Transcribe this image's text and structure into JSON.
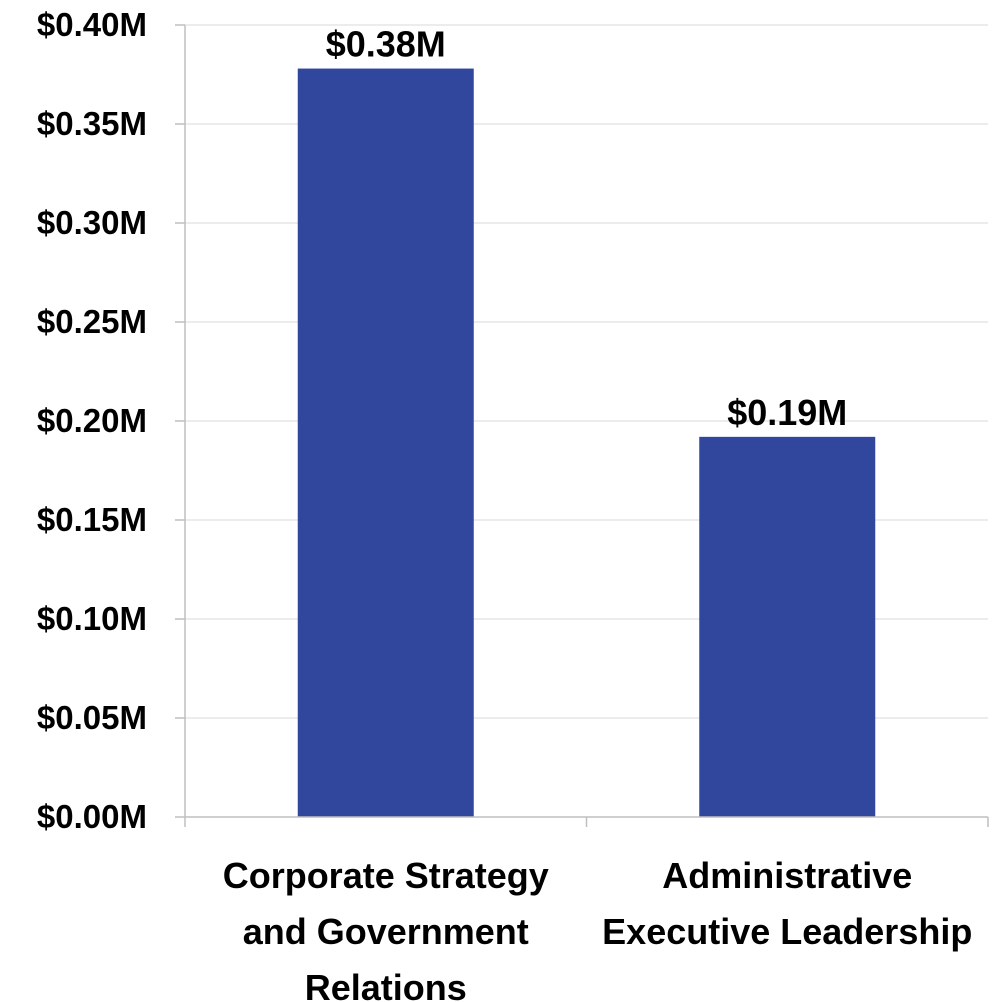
{
  "chart_data": {
    "type": "bar",
    "title": "",
    "xlabel": "",
    "ylabel": "",
    "categories": [
      [
        "Corporate Strategy",
        "and Government",
        "Relations"
      ],
      [
        "Administrative",
        "Executive Leadership"
      ]
    ],
    "values": [
      0.378,
      0.192
    ],
    "data_labels": [
      "$0.38M",
      "$0.19M"
    ],
    "ylim": [
      0,
      0.4
    ],
    "yticks": [
      0,
      0.05,
      0.1,
      0.15,
      0.2,
      0.25,
      0.3,
      0.35,
      0.4
    ],
    "ytick_labels": [
      "$0.00M",
      "$0.05M",
      "$0.10M",
      "$0.15M",
      "$0.20M",
      "$0.25M",
      "$0.30M",
      "$0.35M",
      "$0.40M"
    ],
    "grid": true,
    "legend": "none",
    "colors": {
      "bar": "#31479e",
      "grid": "#d9d9d9",
      "axis": "#bfbfbf"
    }
  }
}
